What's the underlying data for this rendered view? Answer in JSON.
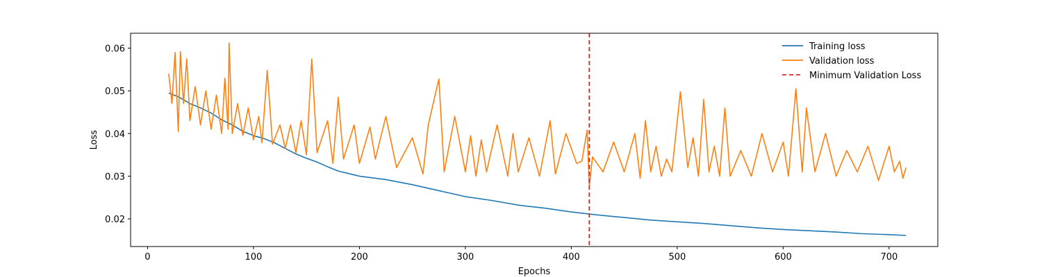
{
  "chart_data": {
    "type": "line",
    "title": "",
    "xlabel": "Epochs",
    "ylabel": "Loss",
    "xlim": [
      -16,
      746
    ],
    "ylim": [
      0.0135,
      0.0635
    ],
    "x_ticks": [
      0,
      100,
      200,
      300,
      400,
      500,
      600,
      700
    ],
    "y_ticks": [
      0.02,
      0.03,
      0.04,
      0.05,
      0.06
    ],
    "y_tick_labels": [
      "0.02",
      "0.03",
      "0.04",
      "0.05",
      "0.06"
    ],
    "grid": false,
    "legend_position": "top-right",
    "series": [
      {
        "name": "Training loss",
        "color": "#1f77b4",
        "style": "solid",
        "points": [
          [
            20,
            0.0495
          ],
          [
            30,
            0.0485
          ],
          [
            40,
            0.047
          ],
          [
            50,
            0.046
          ],
          [
            60,
            0.0448
          ],
          [
            70,
            0.0432
          ],
          [
            80,
            0.042
          ],
          [
            90,
            0.0405
          ],
          [
            100,
            0.0395
          ],
          [
            110,
            0.0388
          ],
          [
            120,
            0.0378
          ],
          [
            130,
            0.0365
          ],
          [
            140,
            0.0352
          ],
          [
            150,
            0.0342
          ],
          [
            160,
            0.0333
          ],
          [
            170,
            0.0322
          ],
          [
            180,
            0.0312
          ],
          [
            190,
            0.0306
          ],
          [
            200,
            0.03
          ],
          [
            225,
            0.0292
          ],
          [
            250,
            0.028
          ],
          [
            275,
            0.0266
          ],
          [
            300,
            0.0252
          ],
          [
            325,
            0.0243
          ],
          [
            350,
            0.0232
          ],
          [
            375,
            0.0225
          ],
          [
            400,
            0.0216
          ],
          [
            425,
            0.0209
          ],
          [
            450,
            0.0203
          ],
          [
            475,
            0.0197
          ],
          [
            500,
            0.0193
          ],
          [
            525,
            0.0189
          ],
          [
            550,
            0.0184
          ],
          [
            575,
            0.0179
          ],
          [
            600,
            0.0175
          ],
          [
            625,
            0.0172
          ],
          [
            650,
            0.0169
          ],
          [
            675,
            0.0165
          ],
          [
            700,
            0.0163
          ],
          [
            716,
            0.0161
          ]
        ]
      },
      {
        "name": "Validation loss",
        "color": "#ff7f0e",
        "style": "solid",
        "points": [
          [
            20,
            0.054
          ],
          [
            23,
            0.047
          ],
          [
            26,
            0.059
          ],
          [
            29,
            0.0405
          ],
          [
            31,
            0.0592
          ],
          [
            34,
            0.047
          ],
          [
            37,
            0.0575
          ],
          [
            40,
            0.043
          ],
          [
            45,
            0.051
          ],
          [
            50,
            0.042
          ],
          [
            55,
            0.05
          ],
          [
            60,
            0.041
          ],
          [
            65,
            0.049
          ],
          [
            70,
            0.04
          ],
          [
            73,
            0.053
          ],
          [
            76,
            0.041
          ],
          [
            77,
            0.0612
          ],
          [
            80,
            0.04
          ],
          [
            85,
            0.047
          ],
          [
            90,
            0.0395
          ],
          [
            95,
            0.046
          ],
          [
            100,
            0.0385
          ],
          [
            105,
            0.044
          ],
          [
            108,
            0.0378
          ],
          [
            113,
            0.0548
          ],
          [
            118,
            0.0375
          ],
          [
            125,
            0.042
          ],
          [
            130,
            0.0365
          ],
          [
            135,
            0.042
          ],
          [
            140,
            0.0355
          ],
          [
            145,
            0.043
          ],
          [
            150,
            0.035
          ],
          [
            155,
            0.0575
          ],
          [
            160,
            0.0355
          ],
          [
            170,
            0.043
          ],
          [
            175,
            0.033
          ],
          [
            180,
            0.0485
          ],
          [
            185,
            0.034
          ],
          [
            195,
            0.042
          ],
          [
            200,
            0.033
          ],
          [
            210,
            0.0415
          ],
          [
            215,
            0.034
          ],
          [
            225,
            0.044
          ],
          [
            235,
            0.032
          ],
          [
            250,
            0.039
          ],
          [
            260,
            0.0305
          ],
          [
            265,
            0.042
          ],
          [
            275,
            0.0528
          ],
          [
            280,
            0.031
          ],
          [
            290,
            0.044
          ],
          [
            300,
            0.031
          ],
          [
            305,
            0.0395
          ],
          [
            310,
            0.03
          ],
          [
            315,
            0.0385
          ],
          [
            320,
            0.031
          ],
          [
            330,
            0.042
          ],
          [
            340,
            0.03
          ],
          [
            345,
            0.04
          ],
          [
            350,
            0.031
          ],
          [
            360,
            0.039
          ],
          [
            370,
            0.03
          ],
          [
            380,
            0.043
          ],
          [
            385,
            0.0305
          ],
          [
            395,
            0.04
          ],
          [
            405,
            0.033
          ],
          [
            410,
            0.0335
          ],
          [
            415,
            0.0408
          ],
          [
            417,
            0.0275
          ],
          [
            420,
            0.0345
          ],
          [
            430,
            0.031
          ],
          [
            440,
            0.038
          ],
          [
            450,
            0.031
          ],
          [
            460,
            0.04
          ],
          [
            465,
            0.0295
          ],
          [
            470,
            0.043
          ],
          [
            475,
            0.031
          ],
          [
            480,
            0.037
          ],
          [
            485,
            0.03
          ],
          [
            490,
            0.034
          ],
          [
            495,
            0.031
          ],
          [
            503,
            0.0498
          ],
          [
            510,
            0.032
          ],
          [
            515,
            0.039
          ],
          [
            520,
            0.03
          ],
          [
            525,
            0.048
          ],
          [
            530,
            0.031
          ],
          [
            535,
            0.037
          ],
          [
            540,
            0.03
          ],
          [
            545,
            0.046
          ],
          [
            550,
            0.03
          ],
          [
            560,
            0.036
          ],
          [
            570,
            0.03
          ],
          [
            580,
            0.04
          ],
          [
            590,
            0.031
          ],
          [
            600,
            0.038
          ],
          [
            605,
            0.03
          ],
          [
            612,
            0.0505
          ],
          [
            618,
            0.031
          ],
          [
            622,
            0.046
          ],
          [
            630,
            0.031
          ],
          [
            640,
            0.04
          ],
          [
            650,
            0.03
          ],
          [
            660,
            0.036
          ],
          [
            670,
            0.031
          ],
          [
            680,
            0.037
          ],
          [
            690,
            0.029
          ],
          [
            700,
            0.037
          ],
          [
            705,
            0.031
          ],
          [
            710,
            0.0335
          ],
          [
            713,
            0.0295
          ],
          [
            716,
            0.032
          ]
        ]
      }
    ],
    "reference_lines": [
      {
        "name": "Minimum Validation Loss",
        "orientation": "vertical",
        "x": 417,
        "color": "#d62728",
        "style": "dashed"
      }
    ]
  }
}
